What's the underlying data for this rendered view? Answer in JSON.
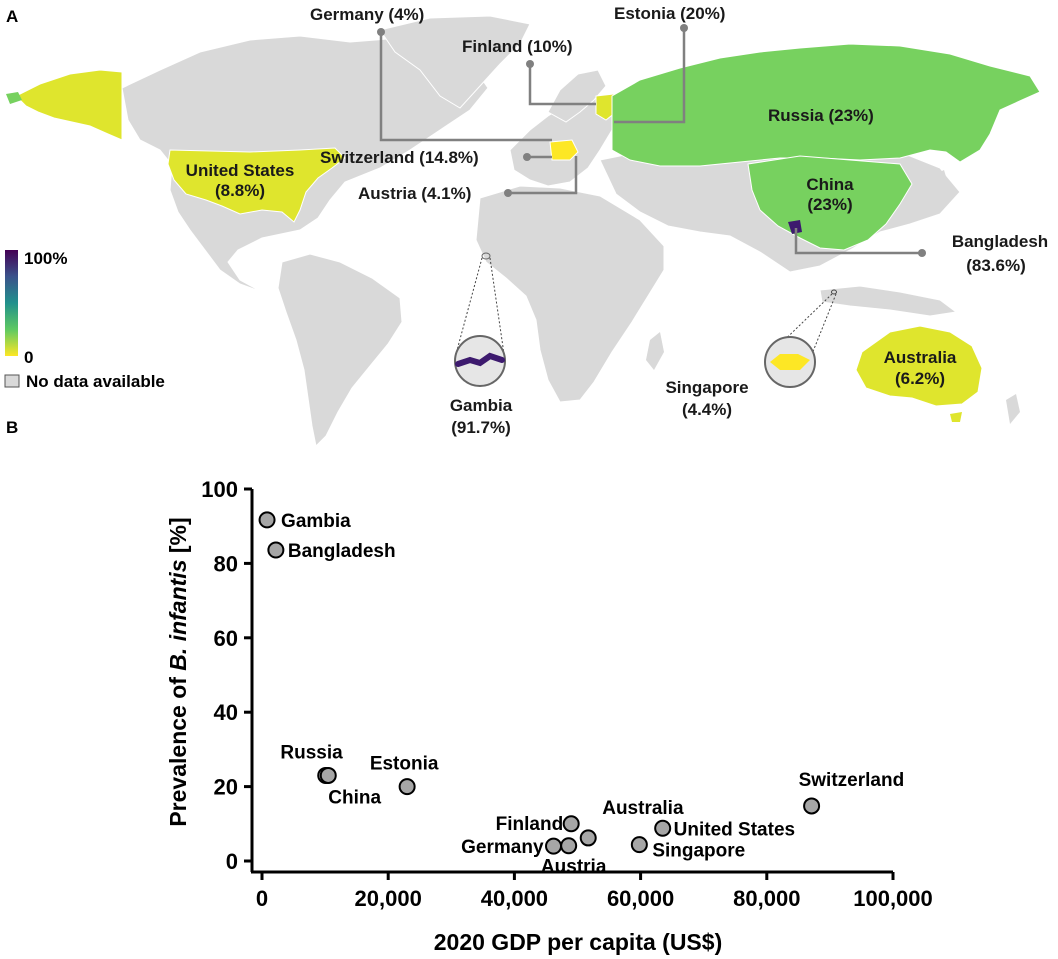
{
  "panel_a": {
    "letter": "A",
    "colors": {
      "no_data": "#d9d9d9",
      "yellow": "#dfe52d",
      "green": "#77d15f",
      "purple": "#3d1a6e",
      "singapore_yellow": "#fde725",
      "ocean": "#ffffff"
    },
    "labels": {
      "germany": "Germany (4%)",
      "estonia": "Estonia (20%)",
      "finland": "Finland (10%)",
      "russia": "Russia (23%)",
      "switzerland": "Switzerland (14.8%)",
      "austria": "Austria (4.1%)",
      "us_line1": "United States",
      "us_line2": "(8.8%)",
      "china_line1": "China",
      "china_line2": "(23%)",
      "bangladesh_line1": "Bangladesh",
      "bangladesh_line2": "(83.6%)",
      "gambia_line1": "Gambia",
      "gambia_line2": "(91.7%)",
      "singapore_line1": "Singapore",
      "singapore_line2": "(4.4%)",
      "australia_line1": "Australia",
      "australia_line2": "(6.2%)"
    },
    "legend": {
      "max_label": "100%",
      "min_label": "0",
      "no_data_label": "No data available",
      "gradient": [
        "#440154",
        "#3b528b",
        "#21918c",
        "#5ec962",
        "#fde725"
      ]
    }
  },
  "panel_b": {
    "letter": "B"
  },
  "chart_data": {
    "type": "scatter",
    "xlabel": "2020 GDP per capita (US$)",
    "ylabel_prefix": "Prevalence of ",
    "ylabel_italic": "B. infantis",
    "ylabel_suffix": " [%]",
    "xlim": [
      0,
      100000
    ],
    "ylim": [
      0,
      100
    ],
    "x_ticks": [
      0,
      20000,
      40000,
      60000,
      80000,
      100000
    ],
    "x_tick_labels": [
      "0",
      "20,000",
      "40,000",
      "60,000",
      "80,000",
      "100,000"
    ],
    "y_ticks": [
      0,
      20,
      40,
      60,
      80,
      100
    ],
    "y_tick_labels": [
      "0",
      "20",
      "40",
      "60",
      "80",
      "100"
    ],
    "grid": false,
    "marker_color": "#a6a6a6",
    "points": [
      {
        "label": "Gambia",
        "x": 800,
        "y": 91.7
      },
      {
        "label": "Bangladesh",
        "x": 2200,
        "y": 83.6
      },
      {
        "label": "Russia",
        "x": 10100,
        "y": 23
      },
      {
        "label": "China",
        "x": 10500,
        "y": 23
      },
      {
        "label": "Estonia",
        "x": 23000,
        "y": 20
      },
      {
        "label": "Finland",
        "x": 49000,
        "y": 10
      },
      {
        "label": "Australia",
        "x": 51700,
        "y": 6.2
      },
      {
        "label": "Germany",
        "x": 46200,
        "y": 4
      },
      {
        "label": "Austria",
        "x": 48600,
        "y": 4.1
      },
      {
        "label": "Singapore",
        "x": 59800,
        "y": 4.4
      },
      {
        "label": "United States",
        "x": 63500,
        "y": 8.8
      },
      {
        "label": "Switzerland",
        "x": 87100,
        "y": 14.8
      }
    ]
  }
}
